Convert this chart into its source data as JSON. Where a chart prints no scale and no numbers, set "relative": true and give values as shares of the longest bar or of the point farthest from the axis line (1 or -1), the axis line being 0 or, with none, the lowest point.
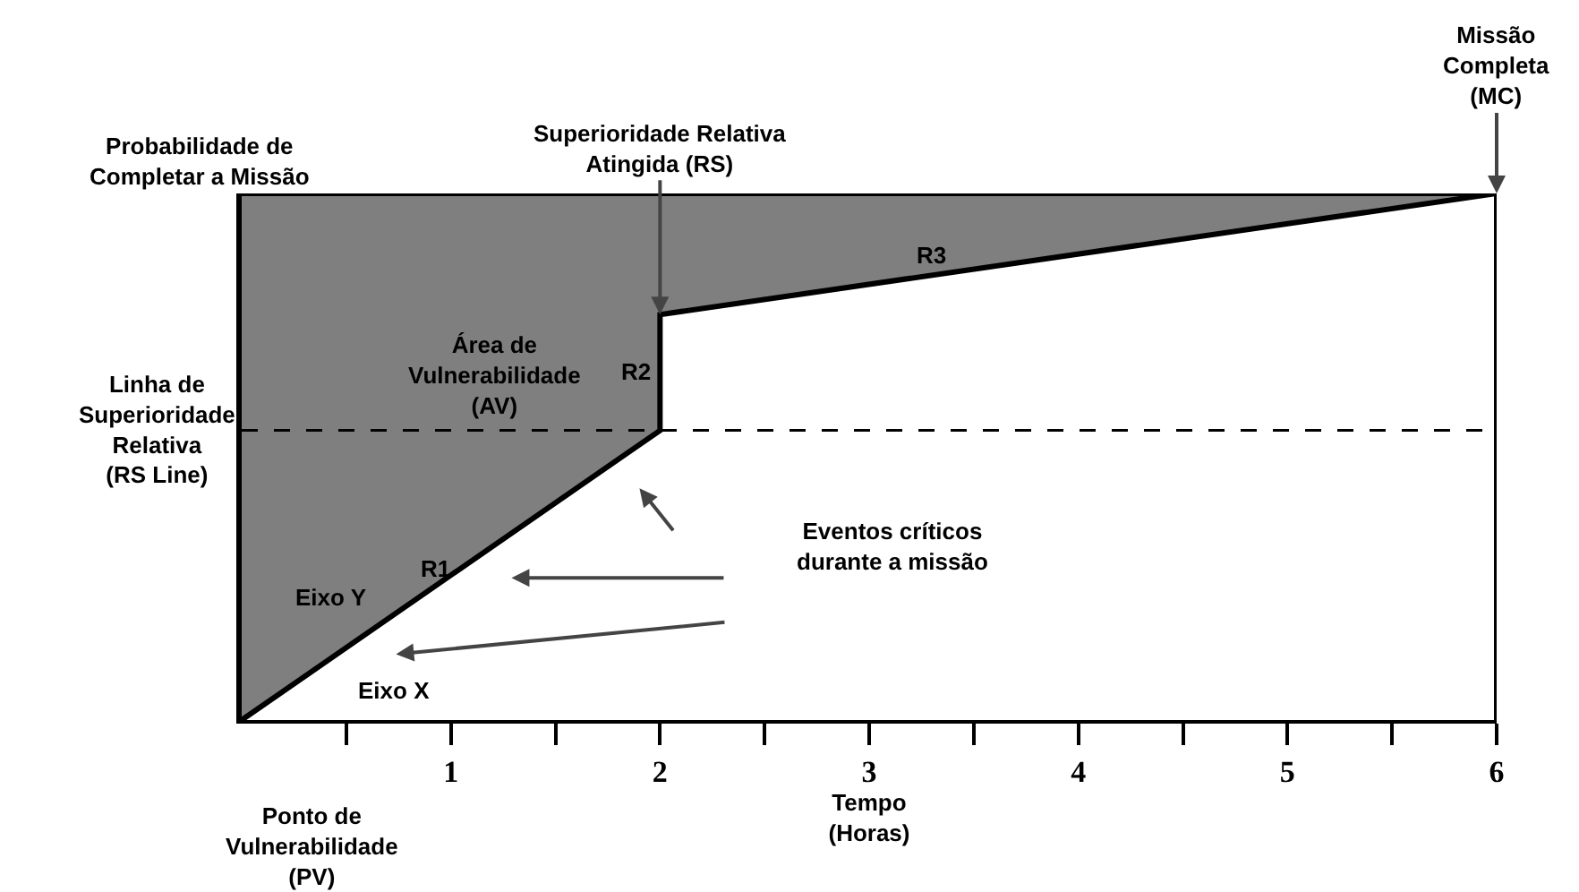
{
  "chart_data": {
    "type": "line",
    "relative": true,
    "xlabel": "Tempo\n(Horas)",
    "xlim": [
      0,
      6
    ],
    "xticks": [
      {
        "value": 0.5,
        "label": null
      },
      {
        "value": 1,
        "label": "1"
      },
      {
        "value": 1.5,
        "label": null
      },
      {
        "value": 2,
        "label": "2"
      },
      {
        "value": 2.5,
        "label": null
      },
      {
        "value": 3,
        "label": "3"
      },
      {
        "value": 3.5,
        "label": null
      },
      {
        "value": 4,
        "label": "4"
      },
      {
        "value": 4.5,
        "label": null
      },
      {
        "value": 5,
        "label": "5"
      },
      {
        "value": 5.5,
        "label": null
      },
      {
        "value": 6,
        "label": "6"
      }
    ],
    "series": [
      {
        "color": "#000000",
        "x": [
          0,
          2,
          2,
          6
        ],
        "values": [
          0,
          0.55,
          0.77,
          1
        ],
        "lower": [
          0,
          0.55,
          0.77,
          1
        ],
        "upper": [
          1,
          1,
          1,
          1
        ]
      }
    ],
    "ref_lines": [
      {
        "axis": "y",
        "value": 1,
        "label": "Probabilidade de\nCompletar a Missão",
        "color": "#000000",
        "line_style": "solid"
      },
      {
        "axis": "y",
        "value": 0.55,
        "label": "Linha de\nSuperioridade\nRelativa\n(RS Line)",
        "color": "#000000",
        "line_style": "dashed"
      },
      {
        "axis": "x",
        "value": 6,
        "label": "Missão\nCompleta\n(MC)",
        "color": "#000000",
        "line_style": "solid"
      }
    ],
    "annotations": [
      {
        "text": "Superioridade Relativa\nAtingida (RS)",
        "x": 2,
        "y": 0.77
      },
      "Eventos críticos\ndurante a missão",
      "Área de\nVulnerabilidade\n(AV)",
      "R1",
      "R2",
      "R3",
      "Eixo Y",
      "Eixo X",
      "Ponto de\nVulnerabilidade\n(PV)"
    ]
  }
}
